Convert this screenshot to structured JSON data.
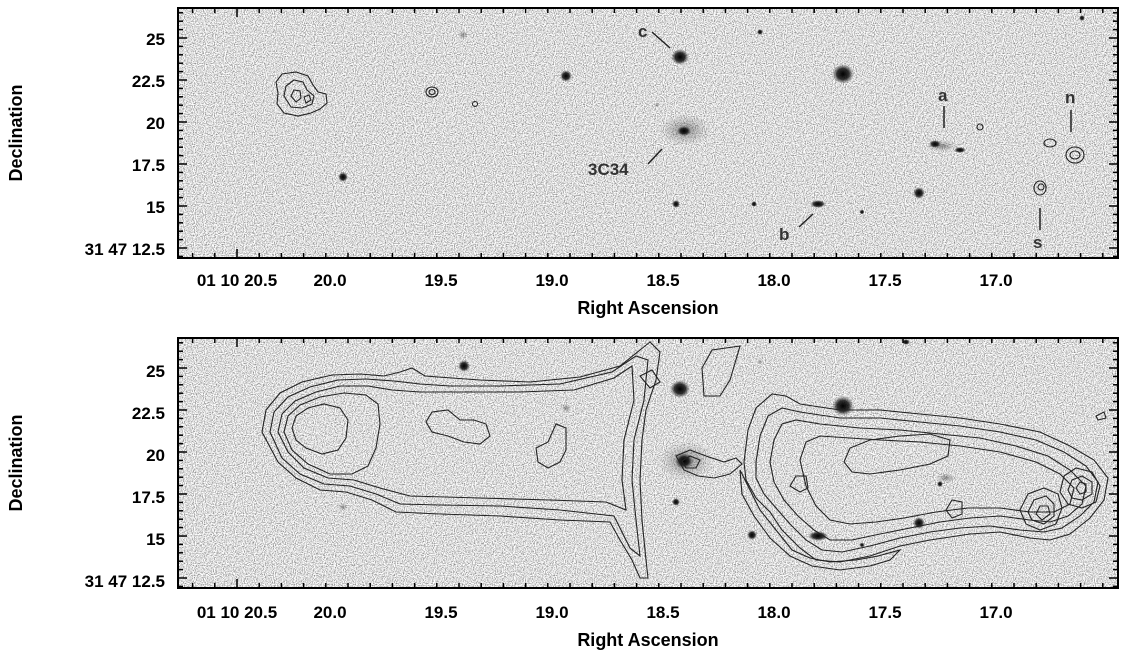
{
  "chart_data": [
    {
      "type": "image",
      "panel": "top",
      "xlabel": "Right Ascension",
      "ylabel": "Declination",
      "x_ticks": [
        "01 10 20.5",
        "20.0",
        "19.5",
        "19.0",
        "18.5",
        "18.0",
        "17.5",
        "17.0"
      ],
      "y_ticks": [
        "25",
        "22.5",
        "20",
        "17.5",
        "15",
        "31 47 12.5"
      ],
      "annotations": [
        {
          "label": "c"
        },
        {
          "label": "3C34"
        },
        {
          "label": "a"
        },
        {
          "label": "n"
        },
        {
          "label": "b"
        },
        {
          "label": "s"
        }
      ]
    },
    {
      "type": "image",
      "panel": "bottom",
      "xlabel": "Right Ascension",
      "ylabel": "Declination",
      "x_ticks": [
        "01 10 20.5",
        "20.0",
        "19.5",
        "19.0",
        "18.5",
        "18.0",
        "17.5",
        "17.0"
      ],
      "y_ticks": [
        "25",
        "22.5",
        "20",
        "17.5",
        "15",
        "31 47 12.5"
      ]
    }
  ]
}
